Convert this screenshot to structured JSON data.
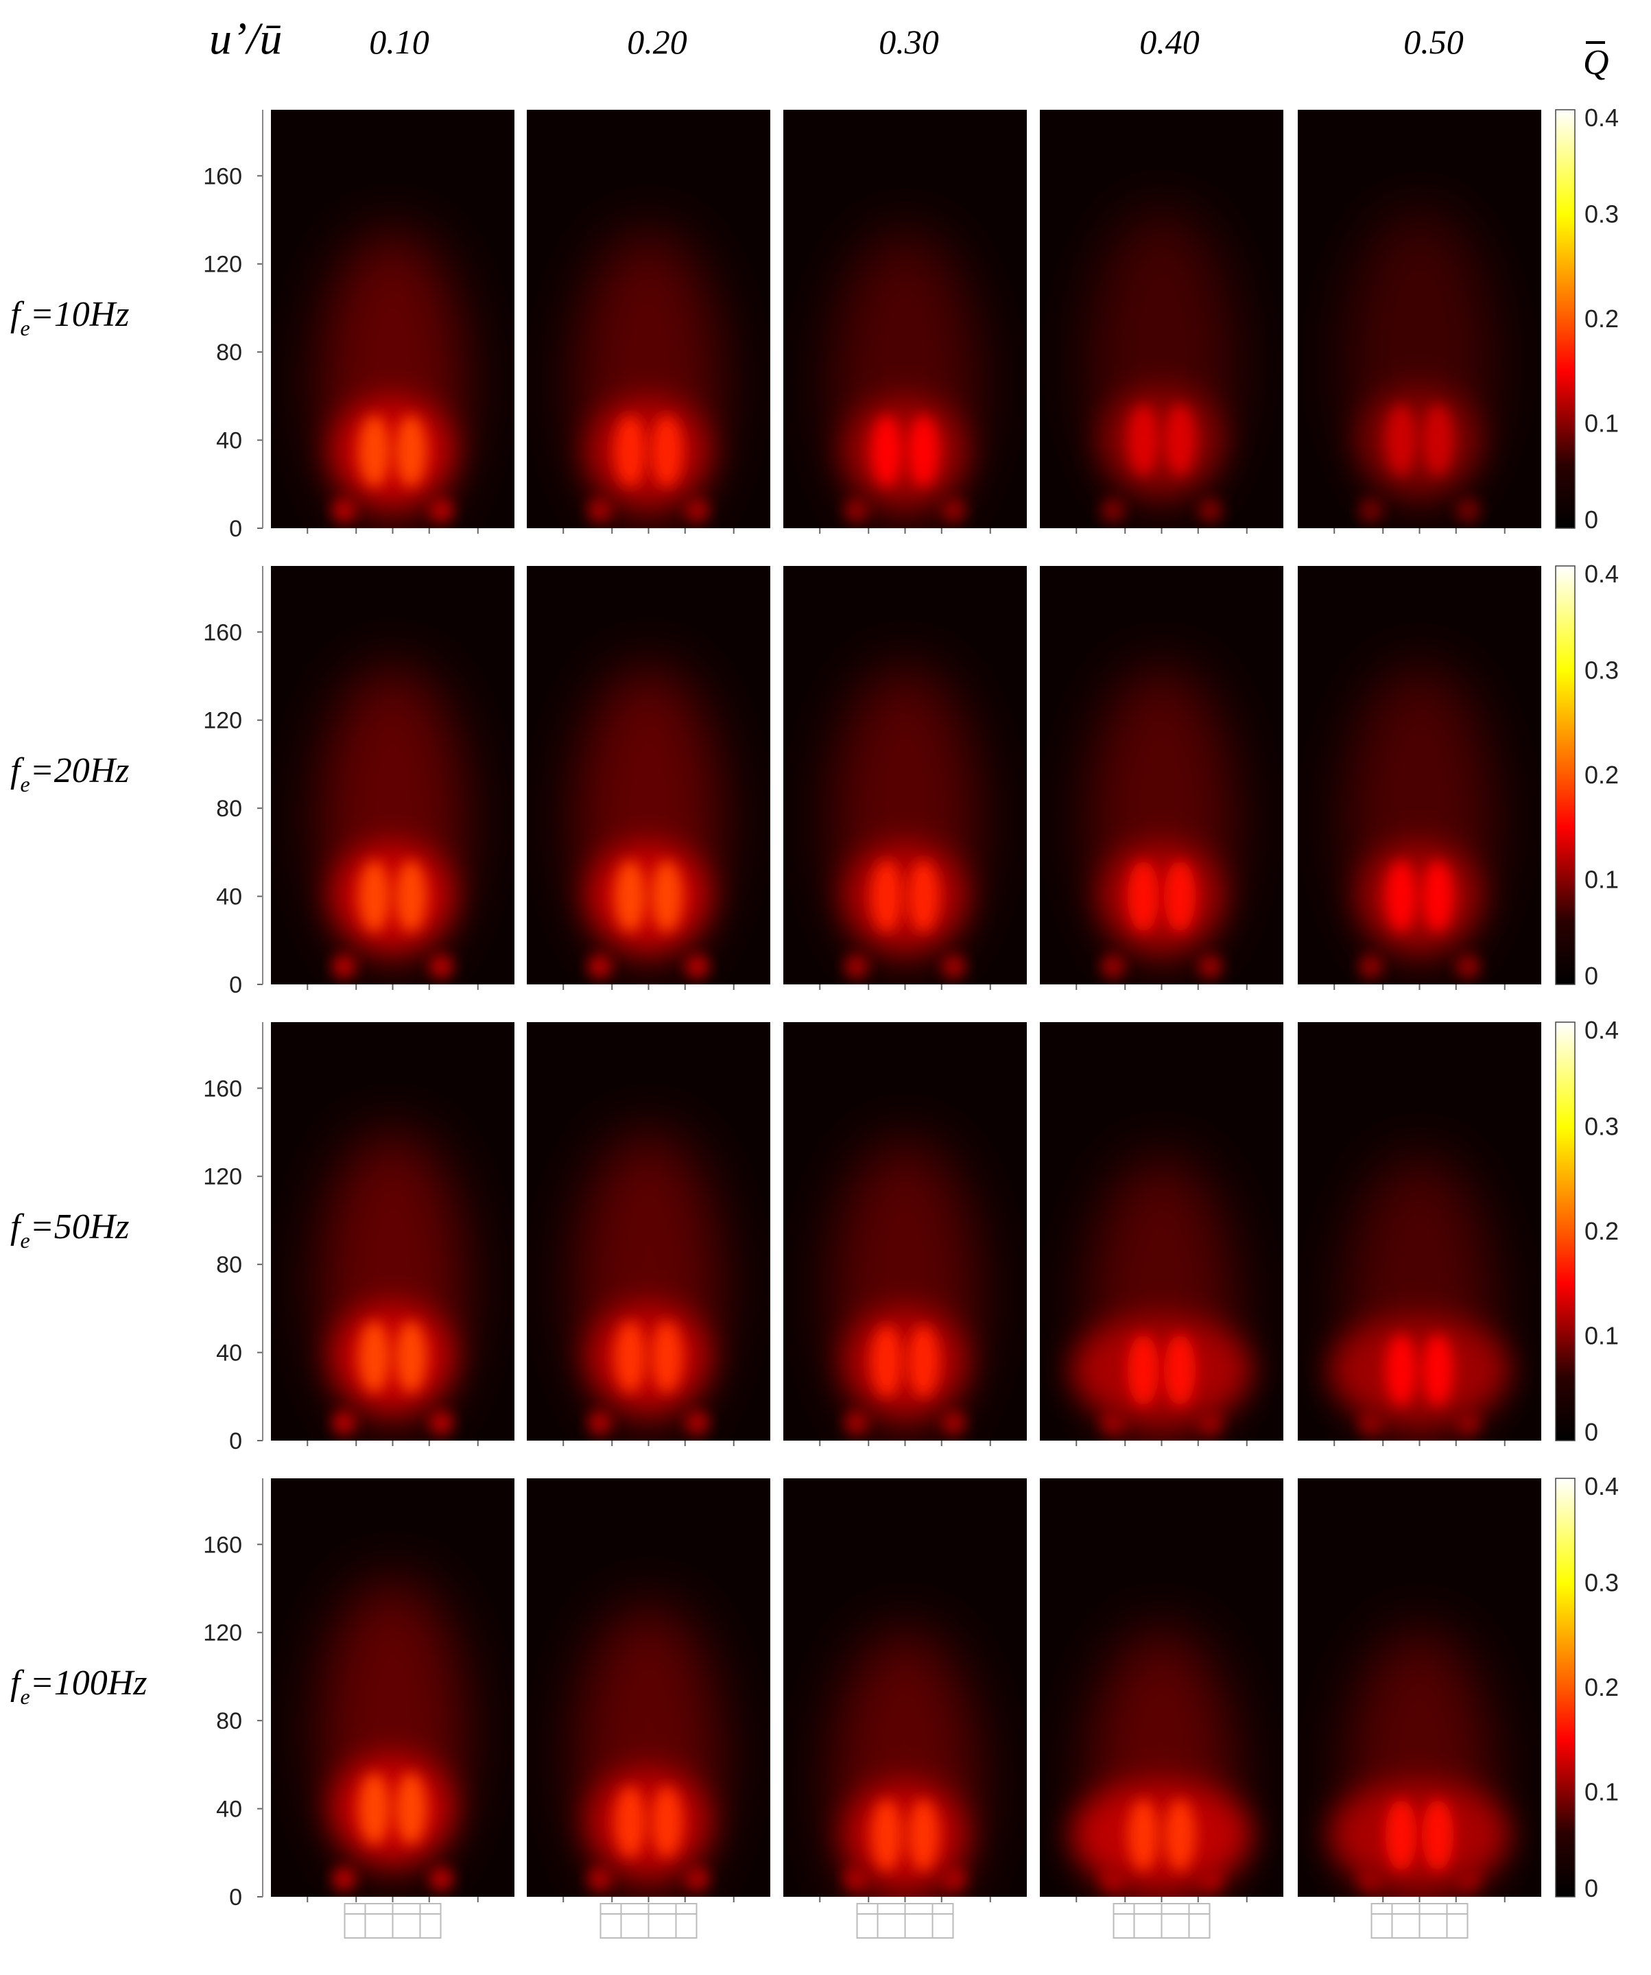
{
  "figure": {
    "column_variable": "u’/ū",
    "colorbar_symbol": "Q",
    "columns": [
      "0.10",
      "0.20",
      "0.30",
      "0.40",
      "0.50"
    ],
    "row_label_prefix": "f",
    "row_label_subscript": "e",
    "rows": [
      "=10Hz",
      "=20Hz",
      "=50Hz",
      "=100Hz"
    ],
    "yticks": [
      "0",
      "40",
      "80",
      "120",
      "160"
    ],
    "cbar_ticks": [
      "0",
      "0.1",
      "0.2",
      "0.3",
      "0.4"
    ]
  },
  "chart_data": {
    "type": "heatmap",
    "quantity": "Q",
    "colormap": "hot",
    "colorbar_range": [
      0,
      0.4
    ],
    "ylim": [
      0,
      190
    ],
    "grid": false,
    "column_parameter": "u’/ū",
    "column_values": [
      0.1,
      0.2,
      0.3,
      0.4,
      0.5
    ],
    "row_parameter": "f_e (Hz)",
    "row_values": [
      10,
      20,
      50,
      100
    ],
    "panels": [
      {
        "fe": 10,
        "u_ratio": 0.1,
        "peak_Q": 0.19,
        "peak_height": 35
      },
      {
        "fe": 10,
        "u_ratio": 0.2,
        "peak_Q": 0.17,
        "peak_height": 35
      },
      {
        "fe": 10,
        "u_ratio": 0.3,
        "peak_Q": 0.15,
        "peak_height": 35
      },
      {
        "fe": 10,
        "u_ratio": 0.4,
        "peak_Q": 0.13,
        "peak_height": 40
      },
      {
        "fe": 10,
        "u_ratio": 0.5,
        "peak_Q": 0.12,
        "peak_height": 40
      },
      {
        "fe": 20,
        "u_ratio": 0.1,
        "peak_Q": 0.19,
        "peak_height": 40
      },
      {
        "fe": 20,
        "u_ratio": 0.2,
        "peak_Q": 0.19,
        "peak_height": 40
      },
      {
        "fe": 20,
        "u_ratio": 0.3,
        "peak_Q": 0.17,
        "peak_height": 40
      },
      {
        "fe": 20,
        "u_ratio": 0.4,
        "peak_Q": 0.16,
        "peak_height": 40
      },
      {
        "fe": 20,
        "u_ratio": 0.5,
        "peak_Q": 0.15,
        "peak_height": 40
      },
      {
        "fe": 50,
        "u_ratio": 0.1,
        "peak_Q": 0.19,
        "peak_height": 38
      },
      {
        "fe": 50,
        "u_ratio": 0.2,
        "peak_Q": 0.18,
        "peak_height": 38
      },
      {
        "fe": 50,
        "u_ratio": 0.3,
        "peak_Q": 0.17,
        "peak_height": 36
      },
      {
        "fe": 50,
        "u_ratio": 0.4,
        "peak_Q": 0.16,
        "peak_height": 32
      },
      {
        "fe": 50,
        "u_ratio": 0.5,
        "peak_Q": 0.15,
        "peak_height": 32
      },
      {
        "fe": 100,
        "u_ratio": 0.1,
        "peak_Q": 0.19,
        "peak_height": 40
      },
      {
        "fe": 100,
        "u_ratio": 0.2,
        "peak_Q": 0.18,
        "peak_height": 34
      },
      {
        "fe": 100,
        "u_ratio": 0.3,
        "peak_Q": 0.18,
        "peak_height": 28
      },
      {
        "fe": 100,
        "u_ratio": 0.4,
        "peak_Q": 0.18,
        "peak_height": 28
      },
      {
        "fe": 100,
        "u_ratio": 0.5,
        "peak_Q": 0.16,
        "peak_height": 28
      }
    ]
  }
}
